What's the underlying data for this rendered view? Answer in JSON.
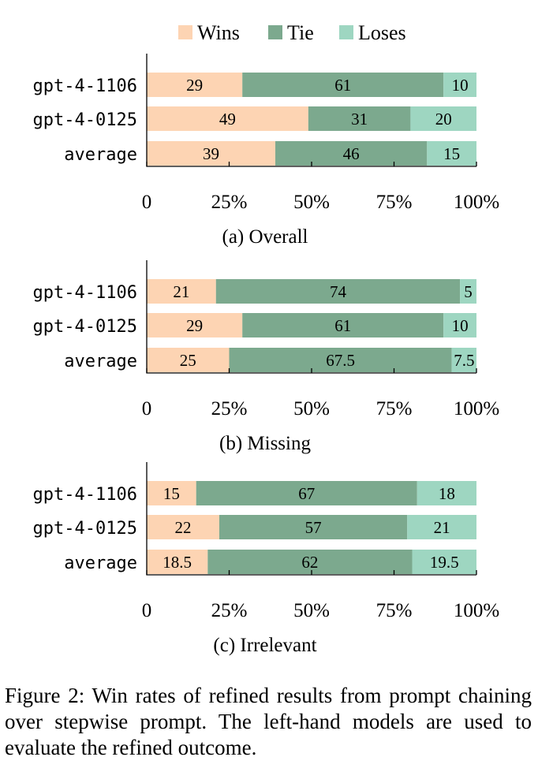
{
  "legend": [
    {
      "label": "Wins",
      "color": "#fdd4b3"
    },
    {
      "label": "Tie",
      "color": "#7ca98e"
    },
    {
      "label": "Loses",
      "color": "#9ed6c1"
    }
  ],
  "chart_data": [
    {
      "type": "bar",
      "orientation": "horizontal",
      "stacked": true,
      "title": "(a) Overall",
      "categories": [
        "gpt-4-1106",
        "gpt-4-0125",
        "average"
      ],
      "series": [
        {
          "name": "Wins",
          "values": [
            29,
            49,
            39
          ],
          "labels": [
            "29",
            "49",
            "39"
          ]
        },
        {
          "name": "Tie",
          "values": [
            61,
            31,
            46
          ],
          "labels": [
            "61",
            "31",
            "46"
          ]
        },
        {
          "name": "Loses",
          "values": [
            10,
            20,
            15
          ],
          "labels": [
            "10",
            "20",
            "15"
          ]
        }
      ],
      "xlim": [
        0,
        100
      ],
      "xticks": [
        "0",
        "25%",
        "50%",
        "75%",
        "100%"
      ],
      "grid": false,
      "legend_position": "top"
    },
    {
      "type": "bar",
      "orientation": "horizontal",
      "stacked": true,
      "title": "(b) Missing",
      "categories": [
        "gpt-4-1106",
        "gpt-4-0125",
        "average"
      ],
      "series": [
        {
          "name": "Wins",
          "values": [
            21,
            29,
            25
          ],
          "labels": [
            "21",
            "29",
            "25"
          ]
        },
        {
          "name": "Tie",
          "values": [
            74,
            61,
            67.5
          ],
          "labels": [
            "74",
            "61",
            "67.5"
          ]
        },
        {
          "name": "Loses",
          "values": [
            5,
            10,
            7.5
          ],
          "labels": [
            "5",
            "10",
            "7.5"
          ]
        }
      ],
      "xlim": [
        0,
        100
      ],
      "xticks": [
        "0",
        "25%",
        "50%",
        "75%",
        "100%"
      ],
      "grid": false
    },
    {
      "type": "bar",
      "orientation": "horizontal",
      "stacked": true,
      "title": "(c) Irrelevant",
      "categories": [
        "gpt-4-1106",
        "gpt-4-0125",
        "average"
      ],
      "series": [
        {
          "name": "Wins",
          "values": [
            15,
            22,
            18.5
          ],
          "labels": [
            "15",
            "22",
            "18.5"
          ]
        },
        {
          "name": "Tie",
          "values": [
            67,
            57,
            62
          ],
          "labels": [
            "67",
            "57",
            "62"
          ]
        },
        {
          "name": "Loses",
          "values": [
            18,
            21,
            19.5
          ],
          "labels": [
            "18",
            "21",
            "19.5"
          ]
        }
      ],
      "xlim": [
        0,
        100
      ],
      "xticks": [
        "0",
        "25%",
        "50%",
        "75%",
        "100%"
      ],
      "grid": false
    }
  ],
  "caption": "Figure 2: Win rates of refined results from prompt chaining over stepwise prompt. The left-hand models are used to evaluate the refined outcome."
}
